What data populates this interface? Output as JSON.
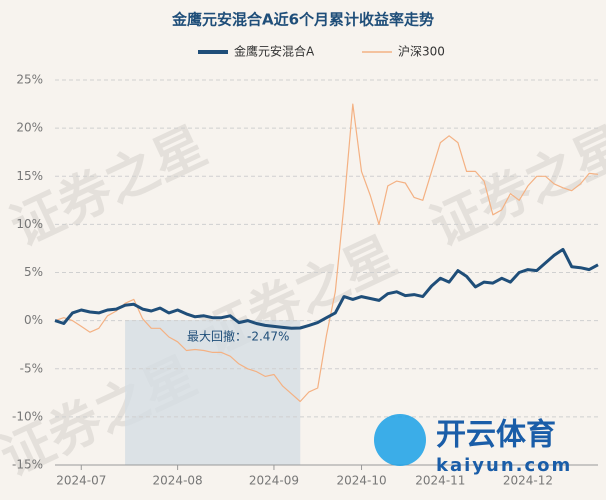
{
  "chart_data": {
    "type": "line",
    "title": "金鹰元安混合A近6个月累计收益率走势",
    "categories": [
      null,
      null,
      null,
      "2024-07",
      null,
      null,
      null,
      null,
      null,
      null,
      null,
      null,
      null,
      null,
      "2024-08",
      null,
      null,
      null,
      null,
      null,
      null,
      null,
      null,
      null,
      null,
      "2024-09",
      null,
      null,
      null,
      null,
      null,
      null,
      null,
      null,
      null,
      "2024-10",
      null,
      null,
      null,
      null,
      null,
      null,
      null,
      null,
      "2024-11",
      null,
      null,
      null,
      null,
      null,
      null,
      null,
      null,
      null,
      "2024-12",
      null,
      null,
      null,
      null,
      null,
      null,
      null,
      null
    ],
    "series": [
      {
        "name": "金鹰元安混合A",
        "color": "#1f4e79",
        "values": [
          0,
          -0.3,
          0.8,
          1.1,
          0.9,
          0.8,
          1.1,
          1.2,
          1.6,
          1.7,
          1.2,
          1.0,
          1.3,
          0.8,
          1.1,
          0.7,
          0.4,
          0.5,
          0.3,
          0.3,
          0.5,
          -0.2,
          0.0,
          -0.3,
          -0.5,
          -0.6,
          -0.7,
          -0.8,
          -0.77,
          -0.5,
          -0.2,
          0.3,
          0.8,
          2.5,
          2.2,
          2.5,
          2.3,
          2.1,
          2.8,
          3.0,
          2.6,
          2.7,
          2.5,
          3.6,
          4.4,
          4.0,
          5.2,
          4.6,
          3.5,
          4.0,
          3.9,
          4.4,
          4.0,
          5.0,
          5.3,
          5.2,
          6.0,
          6.8,
          7.4,
          5.6,
          5.5,
          5.3,
          5.8
        ]
      },
      {
        "name": "沪深300",
        "color": "#f4b183",
        "values": [
          0,
          0.3,
          0,
          -0.6,
          -1.2,
          -0.8,
          0.5,
          1.0,
          1.8,
          2.2,
          0.2,
          -0.8,
          -0.8,
          -1.7,
          -2.2,
          -3.1,
          -3.0,
          -3.1,
          -3.3,
          -3.3,
          -3.7,
          -4.5,
          -5.0,
          -5.3,
          -5.8,
          -5.6,
          -6.8,
          -7.6,
          -8.4,
          -7.4,
          -7.0,
          -1.5,
          3,
          12,
          22.5,
          15.5,
          13,
          10,
          14,
          14.5,
          14.3,
          12.8,
          12.5,
          15.5,
          18.5,
          19.2,
          18.5,
          15.5,
          15.5,
          14.5,
          11,
          11.5,
          13.2,
          12.5,
          14,
          15,
          15,
          14.2,
          13.8,
          13.5,
          14.2,
          15.3,
          15.2
        ]
      }
    ],
    "max_drawdown": {
      "value": -2.47,
      "label": "最大回撤：-2.47%",
      "range": [
        8,
        28
      ]
    },
    "ylim": [
      -15,
      25
    ],
    "yticks": [
      {
        "value": -15,
        "label": "-15%"
      },
      {
        "value": -10,
        "label": "-10%"
      },
      {
        "value": -5,
        "label": "-5%"
      },
      {
        "value": 0,
        "label": "0%"
      },
      {
        "value": 5,
        "label": "5%"
      },
      {
        "value": 10,
        "label": "10%"
      },
      {
        "value": 15,
        "label": "15%"
      },
      {
        "value": 20,
        "label": "20%"
      },
      {
        "value": 25,
        "label": "25%"
      }
    ],
    "grid": true,
    "watermark": "证券之星",
    "logo": {
      "name": "开云体育",
      "url": "kaiyun.com"
    }
  }
}
